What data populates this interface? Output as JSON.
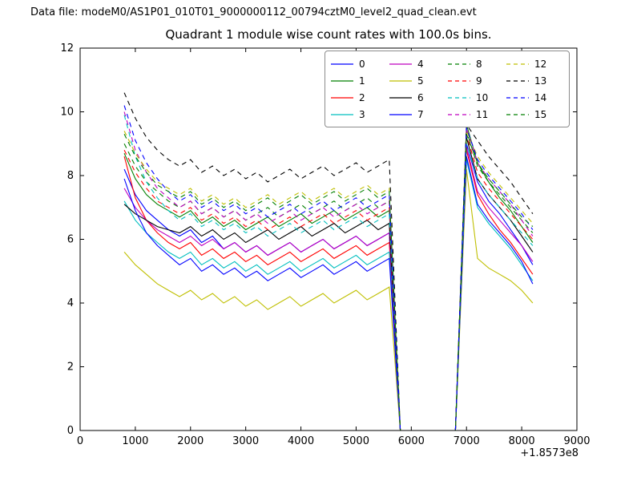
{
  "header": {
    "data_file_label": "Data file: modeM0/AS1P01_010T01_9000000112_00794cztM0_level2_quad_clean.evt"
  },
  "chart_data": {
    "type": "line",
    "title": "Quadrant 1 module wise count rates with 100.0s bins.",
    "xlabel": "",
    "ylabel": "",
    "x_axis_offset_label": "+1.8573e8",
    "xlim": [
      0,
      9000
    ],
    "ylim": [
      0,
      12
    ],
    "xticks": [
      0,
      1000,
      2000,
      3000,
      4000,
      5000,
      6000,
      7000,
      8000,
      9000
    ],
    "yticks": [
      0,
      2,
      4,
      6,
      8,
      10,
      12
    ],
    "grid": false,
    "legend_position": "upper center-right",
    "legend_columns": 4,
    "x": [
      800,
      1000,
      1200,
      1400,
      1600,
      1800,
      2000,
      2200,
      2400,
      2600,
      2800,
      3000,
      3200,
      3400,
      3600,
      3800,
      4000,
      4200,
      4400,
      4600,
      4800,
      5000,
      5200,
      5400,
      5600,
      5800,
      6000,
      6200,
      6400,
      6600,
      6800,
      7000,
      7200,
      7400,
      7600,
      7800,
      8000,
      8200
    ],
    "series": [
      {
        "name": "0",
        "color": "#0000ff",
        "dash": false,
        "values": [
          8.2,
          7.4,
          6.9,
          6.6,
          6.3,
          6.1,
          6.3,
          5.9,
          6.1,
          5.7,
          5.9,
          5.6,
          5.8,
          5.5,
          5.7,
          5.9,
          5.6,
          5.8,
          6.0,
          5.7,
          5.9,
          6.1,
          5.8,
          6.0,
          6.2,
          0,
          0,
          0,
          0,
          0,
          0,
          9.0,
          7.8,
          7.2,
          6.8,
          6.3,
          5.8,
          5.2
        ]
      },
      {
        "name": "1",
        "color": "#007f00",
        "dash": false,
        "values": [
          8.7,
          7.9,
          7.4,
          7.1,
          6.9,
          6.7,
          6.9,
          6.5,
          6.7,
          6.4,
          6.6,
          6.3,
          6.5,
          6.7,
          6.4,
          6.6,
          6.8,
          6.5,
          6.7,
          6.9,
          6.6,
          6.8,
          7.0,
          6.7,
          6.9,
          0,
          0,
          0,
          0,
          0,
          0,
          9.6,
          8.4,
          7.8,
          7.3,
          6.9,
          6.4,
          5.9
        ]
      },
      {
        "name": "2",
        "color": "#ff0000",
        "dash": false,
        "values": [
          8.6,
          7.3,
          6.6,
          6.2,
          5.9,
          5.7,
          5.9,
          5.5,
          5.7,
          5.4,
          5.6,
          5.3,
          5.5,
          5.2,
          5.4,
          5.6,
          5.3,
          5.5,
          5.7,
          5.4,
          5.6,
          5.8,
          5.5,
          5.7,
          5.9,
          0,
          0,
          0,
          0,
          0,
          0,
          8.8,
          7.4,
          6.8,
          6.3,
          5.9,
          5.4,
          4.9
        ]
      },
      {
        "name": "3",
        "color": "#00bfbf",
        "dash": false,
        "values": [
          7.2,
          6.6,
          6.2,
          5.9,
          5.6,
          5.4,
          5.6,
          5.2,
          5.4,
          5.1,
          5.3,
          5.0,
          5.2,
          4.9,
          5.1,
          5.3,
          5.0,
          5.2,
          5.4,
          5.1,
          5.3,
          5.5,
          5.2,
          5.4,
          5.6,
          0,
          0,
          0,
          0,
          0,
          0,
          8.5,
          7.0,
          6.5,
          6.1,
          5.7,
          5.2,
          4.7
        ]
      },
      {
        "name": "4",
        "color": "#bf00bf",
        "dash": false,
        "values": [
          7.6,
          7.0,
          6.6,
          6.3,
          6.1,
          5.9,
          6.1,
          5.8,
          6.0,
          5.7,
          5.9,
          5.6,
          5.8,
          5.5,
          5.7,
          5.9,
          5.6,
          5.8,
          6.0,
          5.7,
          5.9,
          6.1,
          5.8,
          6.0,
          6.2,
          0,
          0,
          0,
          0,
          0,
          0,
          8.9,
          7.5,
          7.0,
          6.6,
          6.2,
          5.8,
          5.3
        ]
      },
      {
        "name": "5",
        "color": "#bfbf00",
        "dash": false,
        "values": [
          5.6,
          5.2,
          4.9,
          4.6,
          4.4,
          4.2,
          4.4,
          4.1,
          4.3,
          4.0,
          4.2,
          3.9,
          4.1,
          3.8,
          4.0,
          4.2,
          3.9,
          4.1,
          4.3,
          4.0,
          4.2,
          4.4,
          4.1,
          4.3,
          4.5,
          0,
          0,
          0,
          0,
          0,
          0,
          8.2,
          5.4,
          5.1,
          4.9,
          4.7,
          4.4,
          4.0
        ]
      },
      {
        "name": "6",
        "color": "#000000",
        "dash": false,
        "values": [
          7.1,
          6.8,
          6.6,
          6.4,
          6.3,
          6.2,
          6.4,
          6.1,
          6.3,
          6.0,
          6.2,
          5.9,
          6.1,
          6.3,
          6.0,
          6.2,
          6.4,
          6.1,
          6.3,
          6.5,
          6.2,
          6.4,
          6.6,
          6.3,
          6.5,
          0,
          0,
          0,
          0,
          0,
          0,
          9.2,
          7.9,
          7.4,
          7.0,
          6.6,
          6.1,
          5.6
        ]
      },
      {
        "name": "7",
        "color": "#0000ff",
        "dash": false,
        "values": [
          7.9,
          6.9,
          6.2,
          5.8,
          5.5,
          5.2,
          5.4,
          5.0,
          5.2,
          4.9,
          5.1,
          4.8,
          5.0,
          4.7,
          4.9,
          5.1,
          4.8,
          5.0,
          5.2,
          4.9,
          5.1,
          5.3,
          5.0,
          5.2,
          5.4,
          0,
          0,
          0,
          0,
          0,
          0,
          8.6,
          7.1,
          6.6,
          6.2,
          5.8,
          5.3,
          4.6
        ]
      },
      {
        "name": "8",
        "color": "#007f00",
        "dash": true,
        "values": [
          9.0,
          8.3,
          7.8,
          7.5,
          7.2,
          7.0,
          7.2,
          6.8,
          7.0,
          6.7,
          6.9,
          6.6,
          6.8,
          7.0,
          6.7,
          6.9,
          7.1,
          6.8,
          7.0,
          7.2,
          6.9,
          7.1,
          7.3,
          7.0,
          7.2,
          0,
          0,
          0,
          0,
          0,
          0,
          9.4,
          8.3,
          7.8,
          7.4,
          7.0,
          6.6,
          6.2
        ]
      },
      {
        "name": "9",
        "color": "#ff0000",
        "dash": true,
        "values": [
          8.8,
          8.1,
          7.6,
          7.2,
          7.0,
          6.8,
          7.0,
          6.6,
          6.8,
          6.5,
          6.7,
          6.4,
          6.6,
          6.3,
          6.5,
          6.7,
          6.4,
          6.6,
          6.8,
          6.5,
          6.7,
          6.9,
          6.6,
          6.8,
          7.0,
          0,
          0,
          0,
          0,
          0,
          0,
          9.3,
          8.1,
          7.6,
          7.2,
          6.8,
          6.4,
          6.0
        ]
      },
      {
        "name": "10",
        "color": "#00bfbf",
        "dash": true,
        "values": [
          9.9,
          8.6,
          7.8,
          7.3,
          6.9,
          6.6,
          6.8,
          6.4,
          6.6,
          6.3,
          6.5,
          6.2,
          6.4,
          6.1,
          6.3,
          6.5,
          6.2,
          6.4,
          6.6,
          6.3,
          6.5,
          6.7,
          6.4,
          6.6,
          6.8,
          0,
          0,
          0,
          0,
          0,
          0,
          9.0,
          7.9,
          7.4,
          7.0,
          6.6,
          6.2,
          5.8
        ]
      },
      {
        "name": "11",
        "color": "#bf00bf",
        "dash": true,
        "values": [
          10.0,
          8.8,
          8.1,
          7.6,
          7.3,
          7.0,
          7.2,
          6.8,
          7.0,
          6.7,
          6.9,
          6.6,
          6.8,
          6.5,
          6.7,
          6.9,
          6.6,
          6.8,
          7.0,
          6.7,
          6.9,
          7.1,
          6.8,
          7.0,
          7.2,
          0,
          0,
          0,
          0,
          0,
          0,
          9.5,
          8.4,
          7.9,
          7.5,
          7.1,
          6.6,
          6.1
        ]
      },
      {
        "name": "12",
        "color": "#bfbf00",
        "dash": true,
        "values": [
          9.4,
          8.7,
          8.2,
          7.8,
          7.6,
          7.4,
          7.6,
          7.2,
          7.4,
          7.1,
          7.3,
          7.0,
          7.2,
          7.4,
          7.1,
          7.3,
          7.5,
          7.2,
          7.4,
          7.6,
          7.3,
          7.5,
          7.7,
          7.4,
          7.6,
          0,
          0,
          0,
          0,
          0,
          0,
          9.4,
          8.6,
          8.1,
          7.7,
          7.3,
          6.9,
          6.5
        ]
      },
      {
        "name": "13",
        "color": "#000000",
        "dash": true,
        "values": [
          10.6,
          9.8,
          9.2,
          8.8,
          8.5,
          8.3,
          8.5,
          8.1,
          8.3,
          8.0,
          8.2,
          7.9,
          8.1,
          7.8,
          8.0,
          8.2,
          7.9,
          8.1,
          8.3,
          8.0,
          8.2,
          8.4,
          8.1,
          8.3,
          8.5,
          0,
          0,
          0,
          0,
          0,
          0,
          9.6,
          9.1,
          8.6,
          8.2,
          7.8,
          7.3,
          6.8
        ]
      },
      {
        "name": "14",
        "color": "#0000ff",
        "dash": true,
        "values": [
          10.2,
          9.1,
          8.4,
          7.9,
          7.5,
          7.2,
          7.4,
          7.0,
          7.2,
          6.9,
          7.1,
          6.8,
          7.0,
          6.7,
          6.9,
          7.1,
          6.8,
          7.0,
          7.2,
          6.9,
          7.1,
          7.3,
          7.0,
          7.2,
          7.4,
          0,
          0,
          0,
          0,
          0,
          0,
          9.5,
          8.5,
          8.0,
          7.6,
          7.2,
          6.8,
          6.3
        ]
      },
      {
        "name": "15",
        "color": "#007f00",
        "dash": true,
        "values": [
          9.3,
          8.6,
          8.1,
          7.7,
          7.5,
          7.3,
          7.5,
          7.1,
          7.3,
          7.0,
          7.2,
          6.9,
          7.1,
          7.3,
          7.0,
          7.2,
          7.4,
          7.1,
          7.3,
          7.5,
          7.2,
          7.4,
          7.6,
          7.3,
          7.5,
          0,
          0,
          0,
          0,
          0,
          0,
          9.3,
          8.4,
          7.9,
          7.5,
          7.1,
          6.7,
          6.4
        ]
      }
    ]
  }
}
